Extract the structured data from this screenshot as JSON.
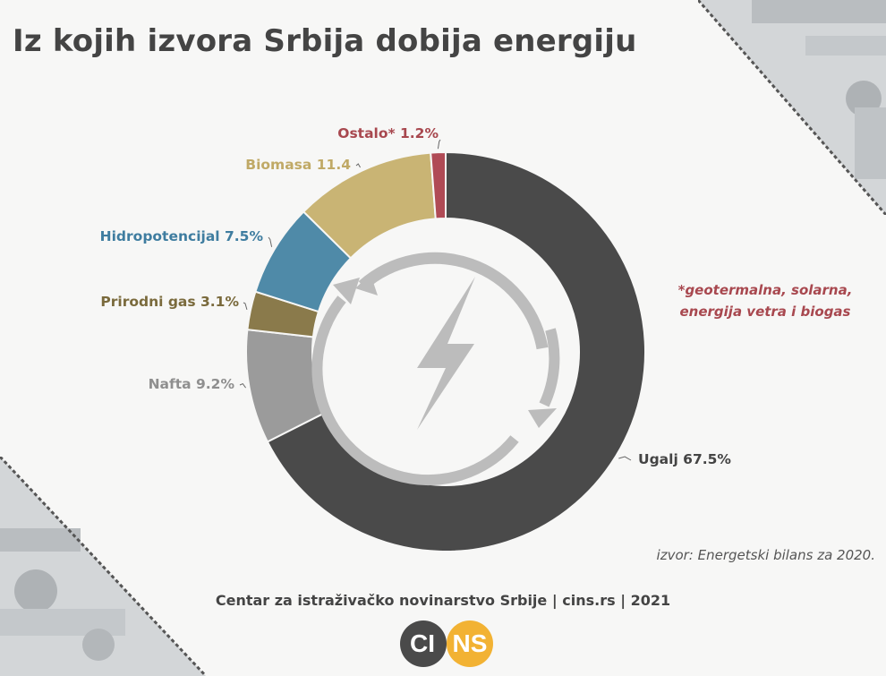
{
  "title": "Iz kojih izvora Srbija dobija energiju",
  "chart_data": {
    "type": "pie",
    "donut": true,
    "title": "Iz kojih izvora Srbija dobija energiju",
    "slices": [
      {
        "label": "Ugalj",
        "display": "Ugalj 67.5%",
        "value": 67.5,
        "color": "#4a4a4a"
      },
      {
        "label": "Nafta",
        "display": "Nafta 9.2%",
        "value": 9.2,
        "color": "#9b9b9b"
      },
      {
        "label": "Prirodni gas",
        "display": "Prirodni gas 3.1%",
        "value": 3.1,
        "color": "#8a7a4b"
      },
      {
        "label": "Hidropotencijal",
        "display": "Hidropotencijal 7.5%",
        "value": 7.5,
        "color": "#4f8aa8"
      },
      {
        "label": "Biomasa",
        "display": "Biomasa 11.4",
        "value": 11.4,
        "color": "#c9b474"
      },
      {
        "label": "Ostalo*",
        "display": "Ostalo* 1.2%",
        "value": 1.2,
        "color": "#b04a55"
      }
    ],
    "center_icon": "energy-cycle-lightning-icon"
  },
  "footnote": {
    "line1": "*geotermalna, solarna,",
    "line2": "energija vetra i biogas"
  },
  "source": "izvor: Energetski bilans za 2020.",
  "credit": "Centar za istraživačko novinarstvo Srbije | cins.rs | 2021",
  "logo": {
    "left": "CI",
    "right": "NS",
    "left_color": "#4a4a4a",
    "right_color": "#f2b233"
  }
}
